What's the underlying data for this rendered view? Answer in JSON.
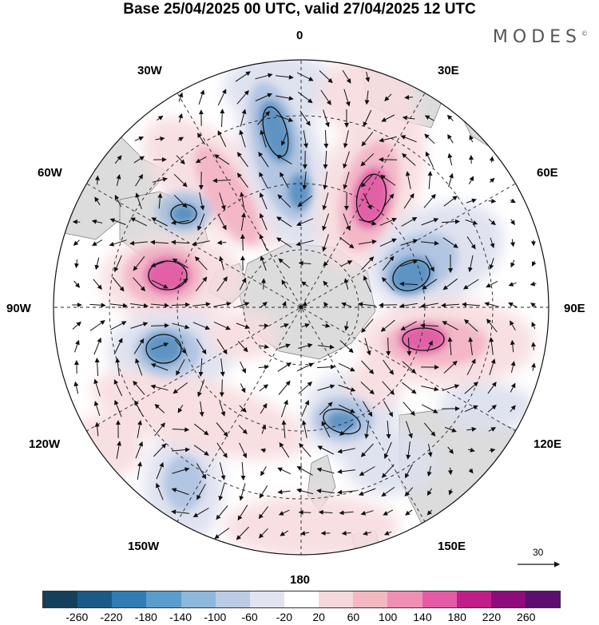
{
  "title": "Base 25/04/2025 00 UTC, valid 27/04/2025 12 UTC",
  "brand": "MODES",
  "brand_mark": "©",
  "longitude_labels": {
    "top": "0",
    "bottom": "180",
    "left": "90W",
    "right": "90E",
    "n30w": "30W",
    "n30e": "30E",
    "n60w": "60W",
    "n60e": "60E",
    "s120w": "120W",
    "s120e": "120E",
    "s150w": "150W",
    "s150e": "150E"
  },
  "reference_vector": "30",
  "colorbar": {
    "ticks": [
      "-260",
      "-220",
      "-180",
      "-140",
      "-100",
      "-60",
      "-20",
      "20",
      "60",
      "100",
      "140",
      "180",
      "220",
      "260"
    ],
    "colors": [
      "#163f5c",
      "#1c5a86",
      "#2f7db2",
      "#5a9ccb",
      "#8fb7da",
      "#bccbe4",
      "#e2e3f0",
      "#ffffff",
      "#f7d8da",
      "#f4b8c1",
      "#ef8fb4",
      "#e45ba5",
      "#c21e89",
      "#8e0c7a",
      "#5c0f6d"
    ]
  },
  "field_color_map": {
    "neg_weak": "#dcdfee",
    "neg_mid": "#aabfdf",
    "neg_strong": "#4d88bd",
    "pos_weak": "#f7dcdf",
    "pos_mid": "#f2b0c2",
    "pos_strong": "#de4f9d",
    "land": "#dcdcdc"
  }
}
